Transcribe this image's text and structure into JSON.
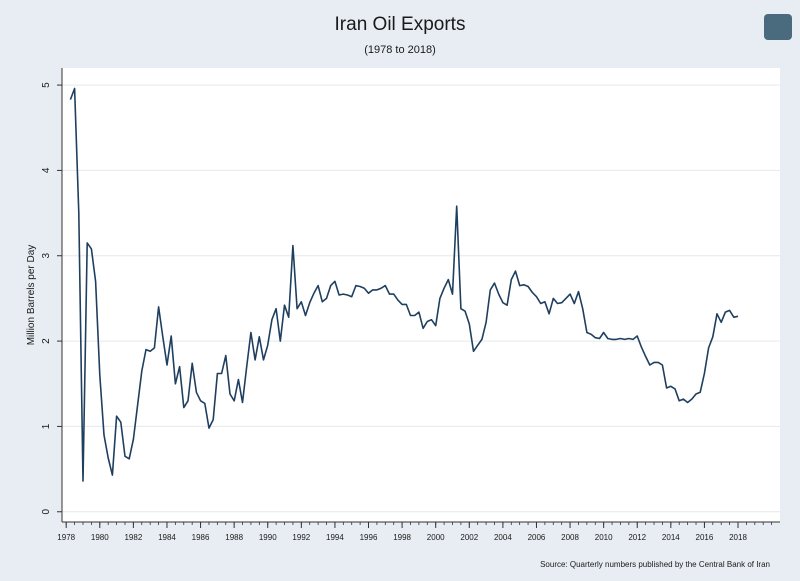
{
  "chart_data": {
    "type": "line",
    "title": "Iran Oil Exports",
    "subtitle": "(1978 to 2018)",
    "xlabel": "",
    "ylabel": "Million Barrels per Day",
    "source": "Source: Quarterly numbers published by the Central Bank of Iran",
    "xlim": [
      1977.75,
      2020.5
    ],
    "ylim": [
      -0.12,
      5.2
    ],
    "xticks": [
      "1978",
      "1980",
      "1982",
      "1984",
      "1986",
      "1988",
      "1990",
      "1992",
      "1994",
      "1996",
      "1998",
      "2000",
      "2002",
      "2004",
      "2006",
      "2008",
      "2010",
      "2012",
      "2014",
      "2016",
      "2018"
    ],
    "yticks": [
      "0",
      "1",
      "2",
      "3",
      "4",
      "5"
    ],
    "grid": true,
    "line_color": "#1f3f5f",
    "series": [
      {
        "x": [
          1978.25,
          1978.5,
          1978.75,
          1979.0,
          1979.25,
          1979.5,
          1979.75,
          1980.0,
          1980.25,
          1980.5,
          1980.75,
          1981.0,
          1981.25,
          1981.5,
          1981.75,
          1982.0,
          1982.25,
          1982.5,
          1982.75,
          1983.0,
          1983.25,
          1983.5,
          1983.75,
          1984.0,
          1984.25,
          1984.5,
          1984.75,
          1985.0,
          1985.25,
          1985.5,
          1985.75,
          1986.0,
          1986.25,
          1986.5,
          1986.75,
          1987.0,
          1987.25,
          1987.5,
          1987.75,
          1988.0,
          1988.25,
          1988.5,
          1988.75,
          1989.0,
          1989.25,
          1989.5,
          1989.75,
          1990.0,
          1990.25,
          1990.5,
          1990.75,
          1991.0,
          1991.25,
          1991.5,
          1991.75,
          1992.0,
          1992.25,
          1992.5,
          1992.75,
          1993.0,
          1993.25,
          1993.5,
          1993.75,
          1994.0,
          1994.25,
          1994.5,
          1994.75,
          1995.0,
          1995.25,
          1995.5,
          1995.75,
          1996.0,
          1996.25,
          1996.5,
          1996.75,
          1997.0,
          1997.25,
          1997.5,
          1997.75,
          1998.0,
          1998.25,
          1998.5,
          1998.75,
          1999.0,
          1999.25,
          1999.5,
          1999.75,
          2000.0,
          2000.25,
          2000.5,
          2000.75,
          2001.0,
          2001.25,
          2001.5,
          2001.75,
          2002.0,
          2002.25,
          2002.5,
          2002.75,
          2003.0,
          2003.25,
          2003.5,
          2003.75,
          2004.0,
          2004.25,
          2004.5,
          2004.75,
          2005.0,
          2005.25,
          2005.5,
          2005.75,
          2006.0,
          2006.25,
          2006.5,
          2006.75,
          2007.0,
          2007.25,
          2007.5,
          2007.75,
          2008.0,
          2008.25,
          2008.5,
          2008.75,
          2009.0,
          2009.25,
          2009.5,
          2009.75,
          2010.0,
          2010.25,
          2010.5,
          2010.75,
          2011.0,
          2011.25,
          2011.5,
          2011.75,
          2012.0,
          2012.25,
          2012.5,
          2012.75,
          2013.0,
          2013.25,
          2013.5,
          2013.75,
          2014.0,
          2014.25,
          2014.5,
          2014.75,
          2015.0,
          2015.25,
          2015.5,
          2015.75,
          2016.0,
          2016.25,
          2016.5,
          2016.75,
          2017.0,
          2017.25,
          2017.5,
          2017.75,
          2018.0
        ],
        "values": [
          4.83,
          4.96,
          3.5,
          0.36,
          3.15,
          3.08,
          2.7,
          1.6,
          0.9,
          0.63,
          0.43,
          1.12,
          1.05,
          0.65,
          0.62,
          0.85,
          1.25,
          1.65,
          1.9,
          1.88,
          1.92,
          2.4,
          2.05,
          1.72,
          2.06,
          1.5,
          1.7,
          1.22,
          1.3,
          1.74,
          1.4,
          1.3,
          1.27,
          0.98,
          1.08,
          1.62,
          1.62,
          1.83,
          1.38,
          1.3,
          1.55,
          1.28,
          1.7,
          2.1,
          1.78,
          2.05,
          1.78,
          1.95,
          2.25,
          2.38,
          2.0,
          2.42,
          2.28,
          3.12,
          2.38,
          2.46,
          2.3,
          2.45,
          2.56,
          2.65,
          2.46,
          2.5,
          2.65,
          2.7,
          2.54,
          2.55,
          2.54,
          2.52,
          2.65,
          2.64,
          2.62,
          2.56,
          2.6,
          2.6,
          2.62,
          2.65,
          2.55,
          2.55,
          2.48,
          2.43,
          2.43,
          2.3,
          2.3,
          2.34,
          2.15,
          2.23,
          2.25,
          2.18,
          2.5,
          2.62,
          2.72,
          2.55,
          3.58,
          2.38,
          2.35,
          2.2,
          1.88,
          1.95,
          2.02,
          2.22,
          2.6,
          2.68,
          2.55,
          2.45,
          2.42,
          2.72,
          2.82,
          2.65,
          2.66,
          2.64,
          2.57,
          2.52,
          2.44,
          2.46,
          2.32,
          2.5,
          2.44,
          2.45,
          2.5,
          2.55,
          2.44,
          2.58,
          2.38,
          2.1,
          2.08,
          2.04,
          2.03,
          2.1,
          2.03,
          2.02,
          2.02,
          2.03,
          2.02,
          2.03,
          2.02,
          2.06,
          1.93,
          1.82,
          1.72,
          1.75,
          1.75,
          1.72,
          1.45,
          1.47,
          1.44,
          1.3,
          1.32,
          1.28,
          1.32,
          1.38,
          1.4,
          1.62,
          1.92,
          2.05,
          2.32,
          2.22,
          2.34,
          2.36,
          2.28,
          2.29
        ]
      }
    ]
  }
}
